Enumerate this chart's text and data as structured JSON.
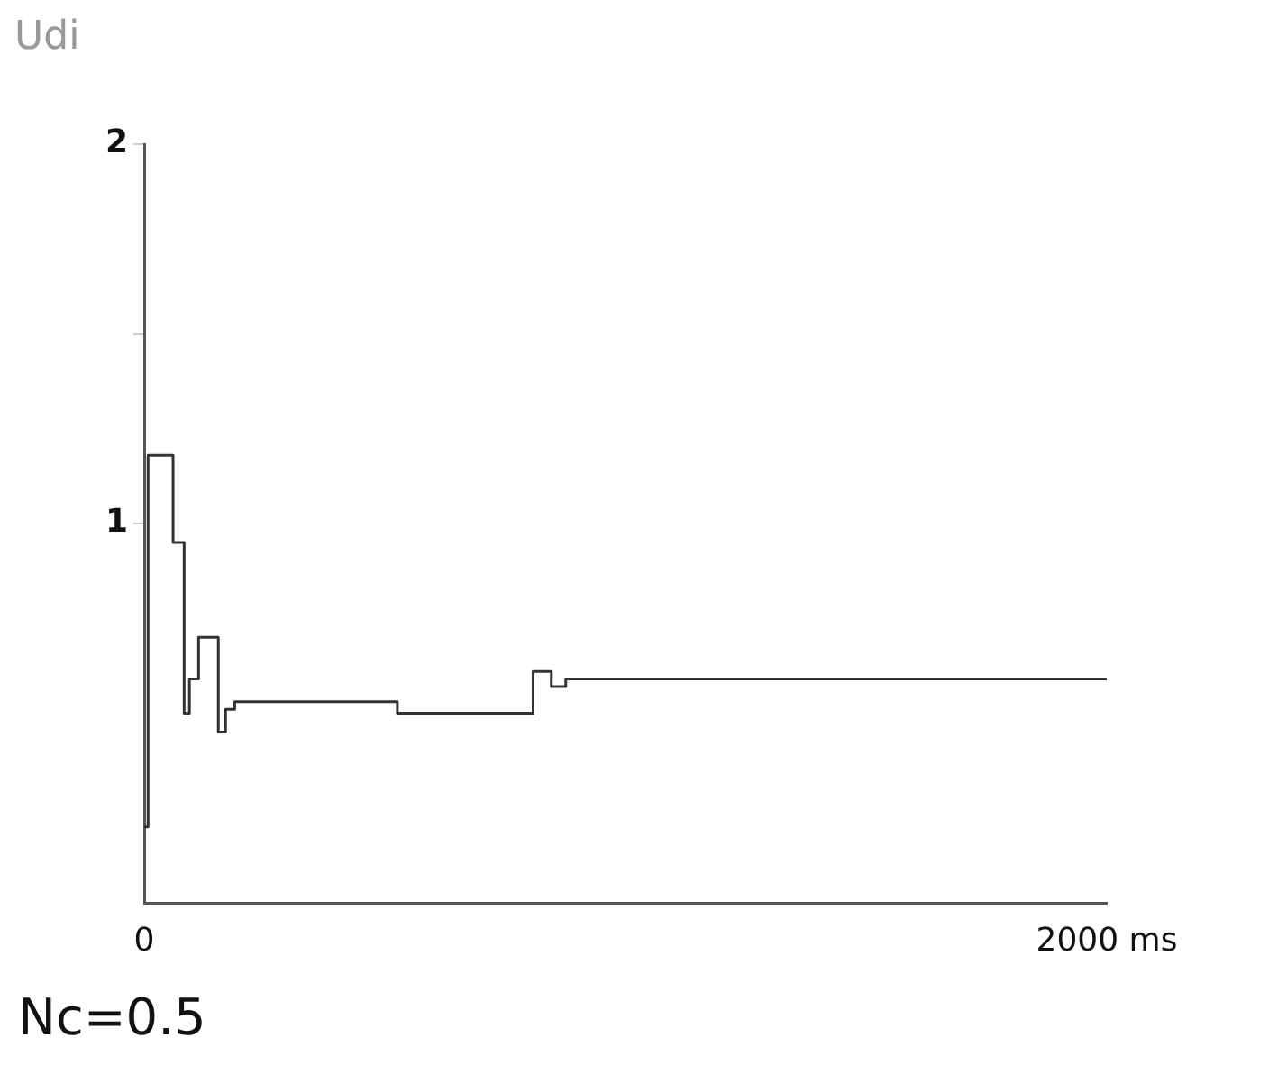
{
  "chart_data": {
    "type": "step",
    "ylabel": "Udi",
    "x": [
      0,
      8,
      60,
      83,
      94,
      113,
      154,
      169,
      188,
      526,
      808,
      846,
      876,
      2000
    ],
    "values": [
      0.2,
      1.18,
      0.95,
      0.5,
      0.59,
      0.7,
      0.45,
      0.51,
      0.53,
      0.5,
      0.61,
      0.57,
      0.59,
      0.59
    ],
    "color": "#333333",
    "xlim": [
      0,
      2000
    ],
    "xticks": [
      0,
      {
        "value": 2000,
        "label": "2000 ms"
      }
    ],
    "ylim": [
      0,
      2
    ],
    "yticks": [
      1,
      {
        "value": 1.5,
        "label": null
      },
      2
    ],
    "grid": false,
    "legend": false,
    "marker": "none",
    "line_style": "solid",
    "annotations": [
      "Nc=0.5"
    ]
  }
}
